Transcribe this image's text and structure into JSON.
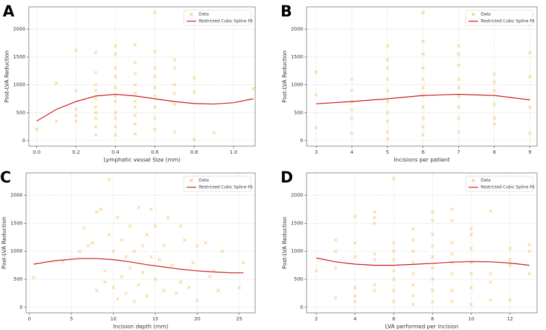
{
  "chart_data": [
    {
      "type": "scatter",
      "panel_label": "A",
      "xlabel": "Lymphatic vessel Size (mm)",
      "ylabel": "Post-LVA Reduction",
      "xlim": [
        -0.04,
        1.11
      ],
      "ylim": [
        -100,
        2400
      ],
      "xticks": [
        {
          "value": 0,
          "label": "0.0"
        },
        0.2,
        0.4,
        0.6,
        0.8,
        {
          "value": 1,
          "label": "1.0"
        }
      ],
      "yticks": [
        0,
        500,
        1000,
        1500,
        2000
      ],
      "grid": true,
      "legend": "upper right",
      "series": [
        {
          "name": "Data",
          "type": "scatter",
          "color": "#f5b942",
          "x": [
            0,
            0.1,
            0.1,
            0.2,
            0.2,
            0.2,
            0.2,
            0.2,
            0.3,
            0.3,
            0.3,
            0.3,
            0.3,
            0.3,
            0.3,
            0.3,
            0.3,
            0.3,
            0.4,
            0.4,
            0.4,
            0.4,
            0.4,
            0.4,
            0.4,
            0.4,
            0.4,
            0.4,
            0.4,
            0.5,
            0.5,
            0.5,
            0.5,
            0.5,
            0.5,
            0.5,
            0.5,
            0.5,
            0.5,
            0.6,
            0.6,
            0.6,
            0.6,
            0.6,
            0.6,
            0.6,
            0.6,
            0.6,
            0.7,
            0.7,
            0.7,
            0.7,
            0.7,
            0.7,
            0.8,
            0.8,
            0.8,
            0.9,
            1.1
          ],
          "values": [
            200,
            1030,
            350,
            1620,
            900,
            560,
            450,
            350,
            1580,
            1220,
            1000,
            900,
            750,
            600,
            500,
            400,
            250,
            100,
            1700,
            1550,
            1300,
            1150,
            950,
            800,
            700,
            500,
            400,
            250,
            100,
            1720,
            1400,
            1200,
            1000,
            850,
            700,
            600,
            450,
            300,
            120,
            2300,
            1600,
            1300,
            1150,
            950,
            800,
            600,
            400,
            200,
            1450,
            1300,
            1000,
            850,
            650,
            150,
            1120,
            870,
            20,
            140,
            930
          ]
        },
        {
          "name": "Restricted Cubic Spline Fit",
          "type": "line",
          "color": "#cc1111",
          "x": [
            0,
            0.1,
            0.2,
            0.3,
            0.4,
            0.5,
            0.6,
            0.7,
            0.8,
            0.9,
            1.0,
            1.1
          ],
          "values": [
            350,
            560,
            700,
            800,
            830,
            800,
            750,
            700,
            665,
            655,
            680,
            750
          ]
        }
      ]
    },
    {
      "type": "scatter",
      "panel_label": "B",
      "xlabel": "Incisions per patient",
      "ylabel": "Post-LVA Reduction",
      "xlim": [
        2.73,
        9.2
      ],
      "ylim": [
        -100,
        2400
      ],
      "xticks": [
        3,
        4,
        5,
        6,
        7,
        8,
        9
      ],
      "yticks": [
        0,
        500,
        1000,
        1500,
        2000
      ],
      "grid": true,
      "legend": "upper right",
      "series": [
        {
          "name": "Data",
          "type": "scatter",
          "color": "#f5b942",
          "x": [
            3,
            3,
            3,
            4,
            4,
            4,
            4,
            4,
            4,
            5,
            5,
            5,
            5,
            5,
            5,
            5,
            5,
            5,
            5,
            6,
            6,
            6,
            6,
            6,
            6,
            6,
            6,
            6,
            6,
            6,
            7,
            7,
            7,
            7,
            7,
            7,
            7,
            7,
            7,
            8,
            8,
            8,
            8,
            8,
            8,
            9,
            9,
            9,
            9
          ],
          "values": [
            1230,
            820,
            230,
            1100,
            900,
            700,
            550,
            400,
            130,
            1700,
            1450,
            1300,
            1100,
            900,
            700,
            500,
            350,
            150,
            30,
            2300,
            1780,
            1550,
            1300,
            1100,
            950,
            800,
            600,
            400,
            250,
            100,
            1700,
            1550,
            1350,
            1100,
            950,
            800,
            600,
            400,
            150,
            1200,
            1050,
            900,
            650,
            400,
            300,
            1580,
            1150,
            600,
            130
          ]
        },
        {
          "name": "Restricted Cubic Spline Fit",
          "type": "line",
          "color": "#cc1111",
          "x": [
            3,
            4,
            5,
            6,
            7,
            8,
            9
          ],
          "values": [
            660,
            700,
            750,
            810,
            830,
            810,
            730
          ]
        }
      ]
    },
    {
      "type": "scatter",
      "panel_label": "C",
      "xlabel": "Incision depth (mm)",
      "ylabel": "Post-LVA Reduction",
      "xlim": [
        -0.4,
        26.9
      ],
      "ylim": [
        -100,
        2400
      ],
      "xticks": [
        0,
        5,
        10,
        15,
        20,
        25
      ],
      "yticks": [
        0,
        500,
        1000,
        1500,
        2000
      ],
      "grid": true,
      "legend": "upper right",
      "series": [
        {
          "name": "Data",
          "type": "scatter",
          "color": "#f5b942",
          "x": [
            0.5,
            4,
            6,
            6.5,
            7,
            7.5,
            8,
            8,
            8.5,
            9,
            9,
            9.5,
            9.5,
            10,
            10,
            10.5,
            10.5,
            11,
            11,
            11.5,
            11.5,
            12,
            12,
            12.5,
            12.5,
            13,
            13,
            13.5,
            13.5,
            14,
            14,
            14.5,
            14.5,
            15,
            15,
            15.5,
            16,
            16,
            16.5,
            17,
            17.5,
            18,
            18,
            18.5,
            19,
            19.5,
            20,
            20,
            21,
            21.5,
            22,
            22.5,
            23,
            25.5,
            25
          ],
          "values": [
            530,
            820,
            1000,
            1420,
            1100,
            1150,
            1700,
            300,
            1750,
            450,
            650,
            2280,
            1300,
            350,
            1000,
            1600,
            150,
            1200,
            550,
            900,
            250,
            1450,
            700,
            1000,
            100,
            1780,
            400,
            1100,
            620,
            1300,
            200,
            1750,
            900,
            1450,
            500,
            850,
            1100,
            300,
            1600,
            750,
            250,
            1450,
            450,
            1200,
            350,
            800,
            1100,
            120,
            1150,
            550,
            650,
            300,
            1000,
            800,
            350
          ]
        },
        {
          "name": "Restricted Cubic Spline Fit",
          "type": "line",
          "color": "#cc1111",
          "x": [
            0.5,
            3,
            6,
            8,
            10,
            12,
            14,
            16,
            18,
            20,
            22,
            24,
            25.5
          ],
          "values": [
            770,
            830,
            870,
            870,
            850,
            810,
            760,
            720,
            680,
            650,
            630,
            615,
            615
          ]
        }
      ]
    },
    {
      "type": "scatter",
      "panel_label": "D",
      "xlabel": "LVA performed per incision",
      "ylabel": "Post-LVA Reduction",
      "xlim": [
        1.5,
        13.4
      ],
      "ylim": [
        -100,
        2400
      ],
      "xticks": [
        2,
        4,
        6,
        8,
        10,
        12
      ],
      "yticks": [
        0,
        500,
        1000,
        1500,
        2000
      ],
      "grid": true,
      "legend": "upper right",
      "series": [
        {
          "name": "Data",
          "type": "scatter",
          "color": "#f5b942",
          "x": [
            2,
            3,
            3,
            3,
            3,
            4,
            4,
            4,
            4,
            4,
            4,
            5,
            5,
            5,
            5,
            5,
            5,
            5,
            6,
            6,
            6,
            6,
            6,
            6,
            6,
            6,
            7,
            7,
            7,
            7,
            7,
            7,
            7,
            7,
            8,
            8,
            8,
            8,
            8,
            8,
            8,
            8,
            8,
            9,
            9,
            9,
            9,
            9,
            9,
            9,
            9,
            10,
            10,
            10,
            10,
            10,
            10,
            10,
            11,
            11,
            11,
            11,
            12,
            12,
            12,
            12,
            13,
            13,
            13
          ],
          "values": [
            650,
            1200,
            1000,
            700,
            170,
            1620,
            1150,
            900,
            350,
            200,
            100,
            1700,
            1600,
            1500,
            950,
            850,
            400,
            300,
            2300,
            1150,
            1000,
            850,
            650,
            500,
            300,
            100,
            1400,
            1200,
            1000,
            800,
            600,
            400,
            200,
            50,
            1700,
            1550,
            1300,
            1100,
            900,
            700,
            500,
            300,
            100,
            1750,
            1550,
            1150,
            950,
            800,
            600,
            300,
            100,
            1400,
            1300,
            1050,
            800,
            600,
            350,
            50,
            1720,
            600,
            450,
            130,
            1050,
            850,
            750,
            130,
            1120,
            1000,
            600
          ]
        },
        {
          "name": "Restricted Cubic Spline Fit",
          "type": "line",
          "color": "#cc1111",
          "x": [
            2,
            3,
            4,
            5,
            6,
            7,
            8,
            9,
            10,
            11,
            12,
            13
          ],
          "values": [
            880,
            810,
            770,
            750,
            750,
            765,
            785,
            805,
            815,
            810,
            790,
            750
          ]
        }
      ]
    }
  ]
}
